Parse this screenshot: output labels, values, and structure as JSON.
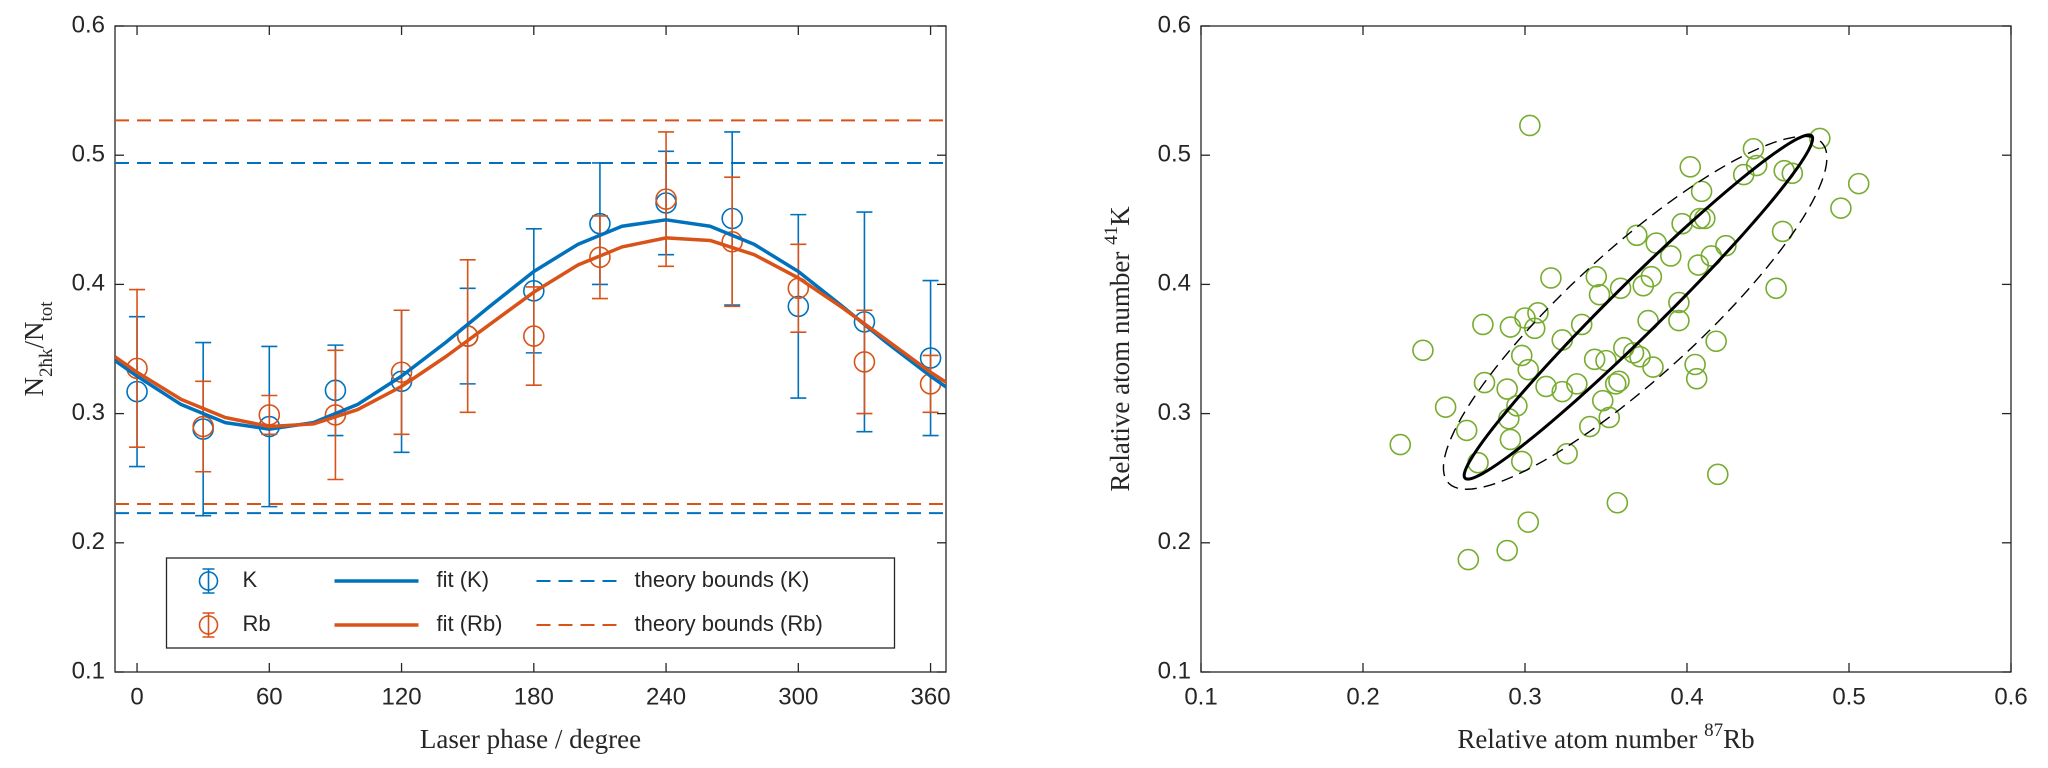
{
  "chart_data": [
    {
      "type": "line",
      "xlabel": [
        {
          "text": "Laser phase / degree"
        }
      ],
      "ylabel": [
        {
          "text": "N"
        },
        {
          "text": "2ħk",
          "script": "sub"
        },
        {
          "text": "/N"
        },
        {
          "text": "tot",
          "script": "sub"
        }
      ],
      "xlim": [
        -10,
        367
      ],
      "ylim": [
        0.1,
        0.6
      ],
      "xticks": [
        0,
        60,
        120,
        180,
        240,
        300,
        360
      ],
      "yticks": [
        0.1,
        0.2,
        0.3,
        0.4,
        0.5,
        0.6
      ],
      "legend": "lower center",
      "series": [
        {
          "name": "K",
          "kind": "errorbar",
          "color": "#0072BD",
          "x": [
            0,
            30,
            60,
            90,
            120,
            150,
            180,
            210,
            240,
            270,
            300,
            330,
            360
          ],
          "values": [
            0.317,
            0.288,
            0.29,
            0.318,
            0.325,
            0.36,
            0.395,
            0.447,
            0.463,
            0.451,
            0.383,
            0.371,
            0.343
          ],
          "errors": [
            0.058,
            0.067,
            0.062,
            0.035,
            0.055,
            0.037,
            0.048,
            0.047,
            0.04,
            0.067,
            0.071,
            0.085,
            0.06
          ]
        },
        {
          "name": "Rb",
          "kind": "errorbar",
          "color": "#D95319",
          "x": [
            0,
            30,
            60,
            90,
            120,
            150,
            180,
            210,
            240,
            270,
            300,
            330,
            360
          ],
          "values": [
            0.335,
            0.29,
            0.299,
            0.299,
            0.332,
            0.36,
            0.36,
            0.421,
            0.466,
            0.433,
            0.397,
            0.34,
            0.323
          ],
          "errors": [
            0.061,
            0.035,
            0.015,
            0.05,
            0.048,
            0.059,
            0.038,
            0.032,
            0.052,
            0.05,
            0.034,
            0.04,
            0.022
          ]
        },
        {
          "name": "fit (K)",
          "kind": "line",
          "color": "#0072BD",
          "x": [
            -10,
            0,
            20,
            40,
            60,
            80,
            100,
            120,
            140,
            160,
            180,
            200,
            220,
            240,
            260,
            280,
            300,
            320,
            340,
            360,
            370
          ],
          "values": [
            0.341,
            0.329,
            0.307,
            0.293,
            0.288,
            0.293,
            0.307,
            0.329,
            0.355,
            0.383,
            0.41,
            0.431,
            0.445,
            0.45,
            0.445,
            0.431,
            0.41,
            0.383,
            0.355,
            0.329,
            0.317
          ]
        },
        {
          "name": "fit (Rb)",
          "kind": "line",
          "color": "#D95319",
          "x": [
            -10,
            0,
            20,
            40,
            60,
            80,
            100,
            120,
            140,
            160,
            180,
            200,
            220,
            240,
            260,
            280,
            300,
            320,
            340,
            360,
            370
          ],
          "values": [
            0.344,
            0.332,
            0.311,
            0.297,
            0.29,
            0.292,
            0.303,
            0.321,
            0.344,
            0.369,
            0.394,
            0.415,
            0.429,
            0.436,
            0.434,
            0.423,
            0.405,
            0.382,
            0.357,
            0.332,
            0.321
          ]
        },
        {
          "name": "theory bounds (K)",
          "kind": "hline",
          "color": "#0072BD",
          "values": [
            0.223,
            0.494
          ]
        },
        {
          "name": "theory bounds (Rb)",
          "kind": "hline",
          "color": "#D95319",
          "values": [
            0.23,
            0.527
          ]
        }
      ]
    },
    {
      "type": "scatter",
      "xlabel": [
        {
          "text": "Relative atom number "
        },
        {
          "text": "87",
          "script": "sup"
        },
        {
          "text": "Rb"
        }
      ],
      "ylabel": [
        {
          "text": "Relative atom number "
        },
        {
          "text": "41",
          "script": "sup"
        },
        {
          "text": "K"
        }
      ],
      "xlim": [
        0.1,
        0.6
      ],
      "ylim": [
        0.1,
        0.6
      ],
      "xticks": [
        0.1,
        0.2,
        0.3,
        0.4,
        0.5,
        0.6
      ],
      "yticks": [
        0.1,
        0.2,
        0.3,
        0.4,
        0.5,
        0.6
      ],
      "color": "#77AC30",
      "x": [
        0.223,
        0.237,
        0.251,
        0.264,
        0.265,
        0.271,
        0.274,
        0.275,
        0.289,
        0.291,
        0.289,
        0.29,
        0.291,
        0.295,
        0.298,
        0.298,
        0.3,
        0.302,
        0.303,
        0.302,
        0.306,
        0.308,
        0.313,
        0.316,
        0.323,
        0.326,
        0.323,
        0.332,
        0.335,
        0.34,
        0.343,
        0.344,
        0.346,
        0.348,
        0.35,
        0.352,
        0.356,
        0.359,
        0.358,
        0.357,
        0.361,
        0.367,
        0.369,
        0.371,
        0.373,
        0.376,
        0.378,
        0.381,
        0.379,
        0.39,
        0.395,
        0.395,
        0.397,
        0.402,
        0.405,
        0.406,
        0.407,
        0.408,
        0.409,
        0.411,
        0.418,
        0.415,
        0.419,
        0.424,
        0.435,
        0.441,
        0.443,
        0.455,
        0.459,
        0.46,
        0.465,
        0.482,
        0.495,
        0.506
      ],
      "values": [
        0.276,
        0.349,
        0.305,
        0.287,
        0.187,
        0.262,
        0.369,
        0.324,
        0.194,
        0.367,
        0.319,
        0.296,
        0.28,
        0.306,
        0.263,
        0.345,
        0.374,
        0.216,
        0.523,
        0.334,
        0.366,
        0.378,
        0.321,
        0.405,
        0.317,
        0.269,
        0.357,
        0.323,
        0.369,
        0.29,
        0.342,
        0.406,
        0.392,
        0.31,
        0.341,
        0.297,
        0.323,
        0.397,
        0.325,
        0.231,
        0.351,
        0.347,
        0.438,
        0.344,
        0.399,
        0.372,
        0.406,
        0.432,
        0.336,
        0.422,
        0.386,
        0.372,
        0.447,
        0.491,
        0.338,
        0.327,
        0.415,
        0.451,
        0.472,
        0.451,
        0.356,
        0.422,
        0.253,
        0.43,
        0.485,
        0.505,
        0.492,
        0.397,
        0.441,
        0.488,
        0.486,
        0.513,
        0.459,
        0.478
      ],
      "ellipses": [
        {
          "style": "solid",
          "center": [
            0.37,
            0.3825
          ],
          "major": [
            0.107,
            0.1325
          ],
          "minor": [
            0.011,
            -0.014
          ]
        },
        {
          "style": "dashed",
          "center": [
            0.368,
            0.378
          ],
          "major": [
            0.115,
            0.132
          ],
          "minor": [
            0.028,
            -0.035
          ]
        }
      ]
    }
  ]
}
